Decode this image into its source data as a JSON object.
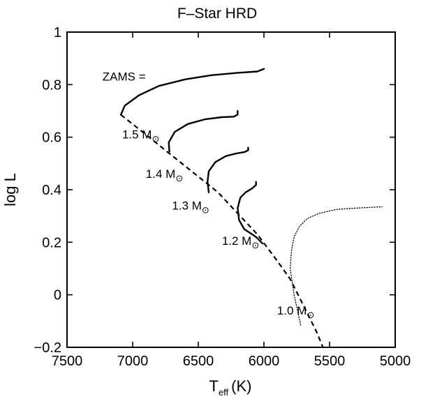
{
  "chart_data": {
    "type": "line",
    "title": "F–Star HRD",
    "xlabel": "T",
    "xlabel_sub": "eff",
    "xlabel_unit": "(K)",
    "ylabel": "log L",
    "xlim": [
      7500,
      5000
    ],
    "ylim": [
      -0.2,
      1.0
    ],
    "x_reversed": true,
    "grid": false,
    "x_ticks": [
      7500,
      7000,
      6500,
      6000,
      5500,
      5000
    ],
    "y_ticks": [
      -0.2,
      0,
      0.2,
      0.4,
      0.6,
      0.8,
      1
    ],
    "x_tick_labels": [
      "7500",
      "7000",
      "6500",
      "6000",
      "5500",
      "5000"
    ],
    "y_tick_labels": [
      "−0.2",
      "0",
      "0.2",
      "0.4",
      "0.6",
      "0.8",
      "1"
    ],
    "series": [
      {
        "name": "ZAMS",
        "style": "dashed",
        "x": [
          7090,
          6950,
          6800,
          6650,
          6500,
          6350,
          6200,
          6050,
          5900,
          5800,
          5700,
          5600,
          5550
        ],
        "y": [
          0.685,
          0.63,
          0.57,
          0.51,
          0.45,
          0.39,
          0.31,
          0.23,
          0.13,
          0.06,
          -0.04,
          -0.14,
          -0.2
        ]
      },
      {
        "name": "1.5 M⊙",
        "style": "solid",
        "x": [
          7090,
          7060,
          6950,
          6800,
          6600,
          6400,
          6200,
          6050,
          6000
        ],
        "y": [
          0.685,
          0.72,
          0.76,
          0.795,
          0.82,
          0.836,
          0.845,
          0.85,
          0.86
        ]
      },
      {
        "name": "1.4 M⊙",
        "style": "solid",
        "x": [
          6720,
          6725,
          6680,
          6580,
          6450,
          6320,
          6230,
          6200,
          6200
        ],
        "y": [
          0.545,
          0.58,
          0.62,
          0.65,
          0.668,
          0.676,
          0.678,
          0.686,
          0.7
        ]
      },
      {
        "name": "1.3 M⊙",
        "style": "solid",
        "x": [
          6420,
          6430,
          6420,
          6370,
          6290,
          6210,
          6150,
          6120,
          6120
        ],
        "y": [
          0.39,
          0.43,
          0.47,
          0.505,
          0.528,
          0.538,
          0.543,
          0.55,
          0.56
        ]
      },
      {
        "name": "1.2 M⊙",
        "style": "solid",
        "x": [
          6010,
          6060,
          6150,
          6190,
          6200,
          6180,
          6140,
          6090,
          6060,
          6060
        ],
        "y": [
          0.195,
          0.22,
          0.25,
          0.285,
          0.33,
          0.37,
          0.39,
          0.405,
          0.418,
          0.43
        ]
      },
      {
        "name": "1.0 M⊙",
        "style": "dotted",
        "x": [
          5720,
          5770,
          5800,
          5790,
          5770,
          5730,
          5670,
          5580,
          5450,
          5300,
          5100
        ],
        "y": [
          -0.115,
          0.0,
          0.1,
          0.17,
          0.22,
          0.26,
          0.29,
          0.31,
          0.325,
          0.33,
          0.335
        ]
      }
    ],
    "annotations": [
      {
        "text": "ZAMS =",
        "x": 7230,
        "y": 0.815
      },
      {
        "text": "1.5 M",
        "sub": "⊙",
        "x": 7080,
        "y": 0.595
      },
      {
        "text": "1.4 M",
        "sub": "⊙",
        "x": 6900,
        "y": 0.445
      },
      {
        "text": "1.3 M",
        "sub": "⊙",
        "x": 6700,
        "y": 0.325
      },
      {
        "text": "1.2 M",
        "sub": "⊙",
        "x": 6320,
        "y": 0.19
      },
      {
        "text": "1.0 M",
        "sub": "⊙",
        "x": 5900,
        "y": -0.075
      }
    ]
  }
}
